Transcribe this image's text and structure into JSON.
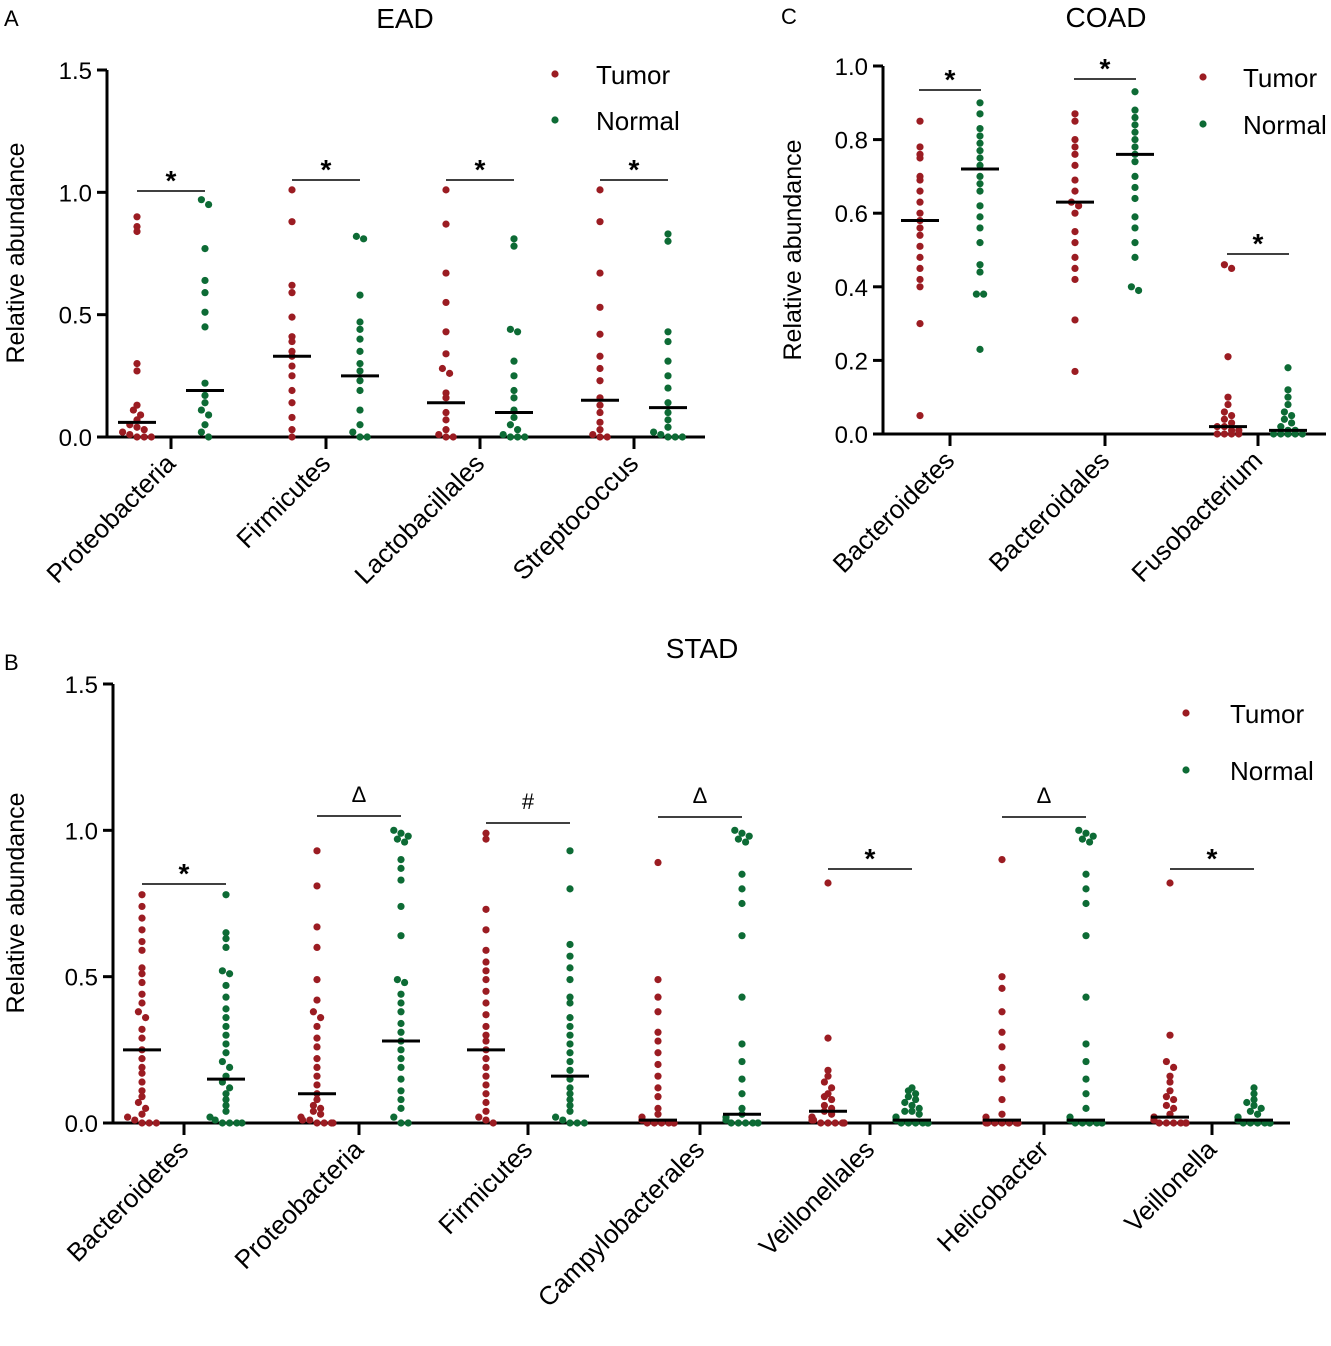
{
  "chart_data": [
    {
      "panel": "A",
      "type": "scatter",
      "title": "EAD",
      "xlabel": "",
      "ylabel": "Relative abundance",
      "ylim": [
        0,
        1.5
      ],
      "yticks": [
        "0.0",
        "0.5",
        "1.0",
        "1.5"
      ],
      "legend": {
        "position": "top-right",
        "entries": [
          "Tumor",
          "Normal"
        ]
      },
      "colors": {
        "tumor": "#9b1c22",
        "normal": "#0d6b35"
      },
      "categories": [
        "Proteobacteria",
        "Firmicutes",
        "Lactobacillales",
        "Streptococcus"
      ],
      "significance": [
        "*",
        "*",
        "*",
        "*"
      ],
      "series": [
        {
          "name": "Tumor",
          "median": [
            0.06,
            0.33,
            0.14,
            0.15
          ],
          "values": [
            [
              0.9,
              0.86,
              0.84,
              0.3,
              0.27,
              0.13,
              0.11,
              0.09,
              0.07,
              0.05,
              0.04,
              0.03,
              0.02,
              0.01,
              0.0,
              0.0,
              0.0
            ],
            [
              1.01,
              0.88,
              0.62,
              0.59,
              0.49,
              0.41,
              0.39,
              0.35,
              0.33,
              0.29,
              0.25,
              0.19,
              0.14,
              0.08,
              0.03,
              0.0
            ],
            [
              1.01,
              0.87,
              0.67,
              0.55,
              0.43,
              0.34,
              0.28,
              0.26,
              0.18,
              0.16,
              0.1,
              0.07,
              0.03,
              0.01,
              0.0,
              0.0
            ],
            [
              1.01,
              0.88,
              0.67,
              0.53,
              0.42,
              0.33,
              0.28,
              0.23,
              0.16,
              0.13,
              0.1,
              0.06,
              0.03,
              0.01,
              0.0,
              0.0
            ]
          ]
        },
        {
          "name": "Normal",
          "median": [
            0.19,
            0.25,
            0.1,
            0.12
          ],
          "values": [
            [
              0.97,
              0.95,
              0.77,
              0.64,
              0.59,
              0.51,
              0.45,
              0.22,
              0.17,
              0.14,
              0.11,
              0.09,
              0.05,
              0.02,
              0.0
            ],
            [
              0.82,
              0.81,
              0.58,
              0.47,
              0.44,
              0.4,
              0.35,
              0.3,
              0.27,
              0.23,
              0.19,
              0.11,
              0.05,
              0.02,
              0.0,
              0.0
            ],
            [
              0.81,
              0.78,
              0.44,
              0.43,
              0.31,
              0.25,
              0.19,
              0.16,
              0.11,
              0.08,
              0.05,
              0.03,
              0.01,
              0.0,
              0.0,
              0.0
            ],
            [
              0.83,
              0.8,
              0.43,
              0.39,
              0.31,
              0.25,
              0.2,
              0.14,
              0.1,
              0.07,
              0.04,
              0.02,
              0.01,
              0.0,
              0.0,
              0.0
            ]
          ]
        }
      ]
    },
    {
      "panel": "C",
      "type": "scatter",
      "title": "COAD",
      "xlabel": "",
      "ylabel": "Relative abundance",
      "ylim": [
        0,
        1.0
      ],
      "yticks": [
        "0.0",
        "0.2",
        "0.4",
        "0.6",
        "0.8",
        "1.0"
      ],
      "legend": {
        "position": "top-right",
        "entries": [
          "Tumor",
          "Normal"
        ]
      },
      "colors": {
        "tumor": "#9b1c22",
        "normal": "#0d6b35"
      },
      "categories": [
        "Bacteroidetes",
        "Bacteroidales",
        "Fusobacterium"
      ],
      "significance": [
        "*",
        "*",
        "*"
      ],
      "series": [
        {
          "name": "Tumor",
          "median": [
            0.58,
            0.63,
            0.02
          ],
          "values": [
            [
              0.85,
              0.78,
              0.76,
              0.75,
              0.7,
              0.69,
              0.66,
              0.63,
              0.6,
              0.58,
              0.56,
              0.54,
              0.51,
              0.48,
              0.45,
              0.42,
              0.4,
              0.3,
              0.05
            ],
            [
              0.87,
              0.85,
              0.8,
              0.78,
              0.76,
              0.73,
              0.69,
              0.66,
              0.63,
              0.62,
              0.6,
              0.55,
              0.52,
              0.48,
              0.45,
              0.42,
              0.31,
              0.17
            ],
            [
              0.46,
              0.45,
              0.21,
              0.1,
              0.08,
              0.06,
              0.05,
              0.04,
              0.03,
              0.02,
              0.02,
              0.01,
              0.01,
              0.0,
              0.0,
              0.0,
              0.0
            ]
          ]
        },
        {
          "name": "Normal",
          "median": [
            0.72,
            0.76,
            0.01
          ],
          "values": [
            [
              0.9,
              0.87,
              0.83,
              0.81,
              0.79,
              0.77,
              0.75,
              0.73,
              0.7,
              0.68,
              0.66,
              0.62,
              0.59,
              0.56,
              0.52,
              0.46,
              0.44,
              0.38,
              0.38,
              0.23
            ],
            [
              0.93,
              0.88,
              0.86,
              0.84,
              0.82,
              0.8,
              0.78,
              0.76,
              0.74,
              0.7,
              0.67,
              0.64,
              0.59,
              0.56,
              0.52,
              0.48,
              0.4,
              0.39
            ],
            [
              0.18,
              0.12,
              0.1,
              0.08,
              0.06,
              0.05,
              0.04,
              0.03,
              0.02,
              0.01,
              0.01,
              0.0,
              0.0,
              0.0,
              0.0,
              0.0
            ]
          ]
        }
      ]
    },
    {
      "panel": "B",
      "type": "scatter",
      "title": "STAD",
      "xlabel": "",
      "ylabel": "Relative abundance",
      "ylim": [
        0,
        1.5
      ],
      "yticks": [
        "0.0",
        "0.5",
        "1.0",
        "1.5"
      ],
      "legend": {
        "position": "top-right",
        "entries": [
          "Tumor",
          "Normal"
        ]
      },
      "colors": {
        "tumor": "#9b1c22",
        "normal": "#0d6b35"
      },
      "categories": [
        "Bacteroidetes",
        "Proteobacteria",
        "Firmicutes",
        "Campylobacterales",
        "Veillonellales",
        "Helicobacter",
        "Veillonella"
      ],
      "significance": [
        "*",
        "Δ",
        "#",
        "Δ",
        "*",
        "Δ",
        "*"
      ],
      "series": [
        {
          "name": "Tumor",
          "median": [
            0.25,
            0.1,
            0.25,
            0.01,
            0.04,
            0.01,
            0.02
          ],
          "values": [
            [
              0.78,
              0.74,
              0.7,
              0.66,
              0.62,
              0.59,
              0.53,
              0.51,
              0.48,
              0.44,
              0.41,
              0.38,
              0.36,
              0.32,
              0.29,
              0.25,
              0.22,
              0.19,
              0.17,
              0.14,
              0.11,
              0.09,
              0.07,
              0.05,
              0.03,
              0.02,
              0.01,
              0.0,
              0.0,
              0.0
            ],
            [
              0.93,
              0.81,
              0.67,
              0.6,
              0.49,
              0.42,
              0.38,
              0.36,
              0.33,
              0.29,
              0.26,
              0.22,
              0.19,
              0.16,
              0.13,
              0.1,
              0.08,
              0.06,
              0.05,
              0.04,
              0.03,
              0.02,
              0.01,
              0.01,
              0.0,
              0.0,
              0.0,
              0.0
            ],
            [
              0.99,
              0.97,
              0.73,
              0.66,
              0.59,
              0.55,
              0.52,
              0.49,
              0.45,
              0.41,
              0.37,
              0.33,
              0.3,
              0.28,
              0.25,
              0.22,
              0.19,
              0.16,
              0.13,
              0.1,
              0.07,
              0.04,
              0.02,
              0.01,
              0.0
            ],
            [
              0.89,
              0.49,
              0.43,
              0.38,
              0.31,
              0.28,
              0.24,
              0.2,
              0.16,
              0.12,
              0.09,
              0.05,
              0.03,
              0.02,
              0.01,
              0.01,
              0.0,
              0.0,
              0.0,
              0.0,
              0.0,
              0.0,
              0.0
            ],
            [
              0.82,
              0.29,
              0.18,
              0.16,
              0.14,
              0.12,
              0.1,
              0.09,
              0.08,
              0.06,
              0.05,
              0.04,
              0.03,
              0.02,
              0.02,
              0.01,
              0.01,
              0.0,
              0.0,
              0.0,
              0.0,
              0.0,
              0.0,
              0.0
            ],
            [
              0.9,
              0.5,
              0.46,
              0.38,
              0.31,
              0.26,
              0.19,
              0.15,
              0.08,
              0.03,
              0.02,
              0.01,
              0.0,
              0.0,
              0.0,
              0.0,
              0.0,
              0.0,
              0.0,
              0.0,
              0.0
            ],
            [
              0.82,
              0.3,
              0.21,
              0.19,
              0.16,
              0.14,
              0.11,
              0.09,
              0.08,
              0.06,
              0.05,
              0.03,
              0.02,
              0.02,
              0.01,
              0.01,
              0.0,
              0.0,
              0.0,
              0.0,
              0.0,
              0.0,
              0.0,
              0.0
            ]
          ]
        },
        {
          "name": "Normal",
          "median": [
            0.15,
            0.28,
            0.16,
            0.03,
            0.01,
            0.01,
            0.01
          ],
          "values": [
            [
              0.78,
              0.65,
              0.63,
              0.6,
              0.52,
              0.51,
              0.47,
              0.43,
              0.39,
              0.36,
              0.33,
              0.3,
              0.27,
              0.24,
              0.21,
              0.19,
              0.16,
              0.14,
              0.12,
              0.1,
              0.08,
              0.06,
              0.04,
              0.02,
              0.01,
              0.0,
              0.0,
              0.0,
              0.0
            ],
            [
              1.0,
              0.99,
              0.98,
              0.97,
              0.96,
              0.9,
              0.87,
              0.83,
              0.74,
              0.64,
              0.49,
              0.48,
              0.44,
              0.41,
              0.38,
              0.34,
              0.31,
              0.28,
              0.25,
              0.22,
              0.19,
              0.15,
              0.11,
              0.08,
              0.05,
              0.02,
              0.0,
              0.0
            ],
            [
              0.93,
              0.8,
              0.61,
              0.57,
              0.53,
              0.49,
              0.43,
              0.41,
              0.36,
              0.33,
              0.3,
              0.27,
              0.24,
              0.21,
              0.18,
              0.15,
              0.12,
              0.1,
              0.08,
              0.06,
              0.04,
              0.02,
              0.01,
              0.0,
              0.0,
              0.0
            ],
            [
              1.0,
              0.99,
              0.98,
              0.97,
              0.96,
              0.85,
              0.8,
              0.75,
              0.64,
              0.43,
              0.27,
              0.21,
              0.15,
              0.1,
              0.05,
              0.03,
              0.02,
              0.01,
              0.0,
              0.0,
              0.0,
              0.0,
              0.0,
              0.0
            ],
            [
              0.12,
              0.11,
              0.1,
              0.09,
              0.08,
              0.07,
              0.06,
              0.05,
              0.04,
              0.04,
              0.03,
              0.02,
              0.02,
              0.01,
              0.01,
              0.0,
              0.0,
              0.0,
              0.0,
              0.0,
              0.0,
              0.0,
              0.0
            ],
            [
              1.0,
              0.99,
              0.98,
              0.97,
              0.96,
              0.85,
              0.8,
              0.75,
              0.64,
              0.43,
              0.27,
              0.21,
              0.15,
              0.1,
              0.05,
              0.02,
              0.01,
              0.0,
              0.0,
              0.0,
              0.0,
              0.0,
              0.0
            ],
            [
              0.12,
              0.1,
              0.08,
              0.07,
              0.06,
              0.05,
              0.04,
              0.03,
              0.02,
              0.02,
              0.01,
              0.01,
              0.0,
              0.0,
              0.0,
              0.0,
              0.0,
              0.0,
              0.0,
              0.0
            ]
          ]
        }
      ]
    }
  ]
}
